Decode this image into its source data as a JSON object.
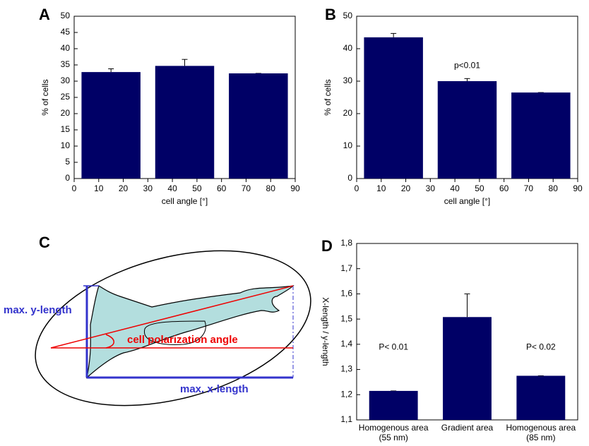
{
  "chart_data": [
    {
      "type": "bar",
      "panel": "A",
      "x": [
        15,
        45,
        75
      ],
      "values": [
        32.8,
        34.7,
        32.4
      ],
      "errors": [
        1,
        2,
        0
      ],
      "color": "#000066",
      "xlim": [
        0,
        90
      ],
      "xticks": [
        0,
        10,
        20,
        30,
        40,
        50,
        60,
        70,
        80,
        90
      ],
      "ylim": [
        0,
        50
      ],
      "yticks": [
        0,
        5,
        10,
        15,
        20,
        25,
        30,
        35,
        40,
        45,
        50
      ],
      "x_label": "cell angle [°]",
      "y_label": "% of cells"
    },
    {
      "type": "bar",
      "panel": "B",
      "x": [
        15,
        45,
        75
      ],
      "values": [
        43.5,
        30,
        26.5
      ],
      "errors": [
        1.2,
        0.8,
        0
      ],
      "color": "#000066",
      "xlim": [
        0,
        90
      ],
      "xticks": [
        0,
        10,
        20,
        30,
        40,
        50,
        60,
        70,
        80,
        90
      ],
      "ylim": [
        0,
        50
      ],
      "yticks": [
        0,
        10,
        20,
        30,
        40,
        50
      ],
      "x_label": "cell angle [°]",
      "y_label": "% of cells",
      "annotations": [
        "p<0.01"
      ]
    },
    {
      "type": "bar",
      "panel": "D",
      "categories": [
        "Homogenous area\n(55 nm)",
        "Gradient area",
        "Homogenous area\n(85 nm)"
      ],
      "values": [
        1.215,
        1.508,
        1.275
      ],
      "errors": [
        0,
        0.092,
        0
      ],
      "color": "#000066",
      "ylim": [
        1.1,
        1.8
      ],
      "yticks": [
        {
          "value": 1.1,
          "label": "1,1"
        },
        {
          "value": 1.2,
          "label": "1,2"
        },
        {
          "value": 1.3,
          "label": "1,3"
        },
        {
          "value": 1.4,
          "label": "1,4"
        },
        {
          "value": 1.5,
          "label": "1,5"
        },
        {
          "value": 1.6,
          "label": "1,6"
        },
        {
          "value": 1.7,
          "label": "1,7"
        },
        {
          "value": 1.8,
          "label": "1,8"
        }
      ],
      "y_label": "X-length / y-length",
      "annotations": [
        "P< 0.01",
        "P< 0.02"
      ]
    }
  ],
  "diagram": {
    "panel": "C",
    "y_length": "max. y-length",
    "angle": "cell polarization angle",
    "x_length": "max. x-length"
  }
}
